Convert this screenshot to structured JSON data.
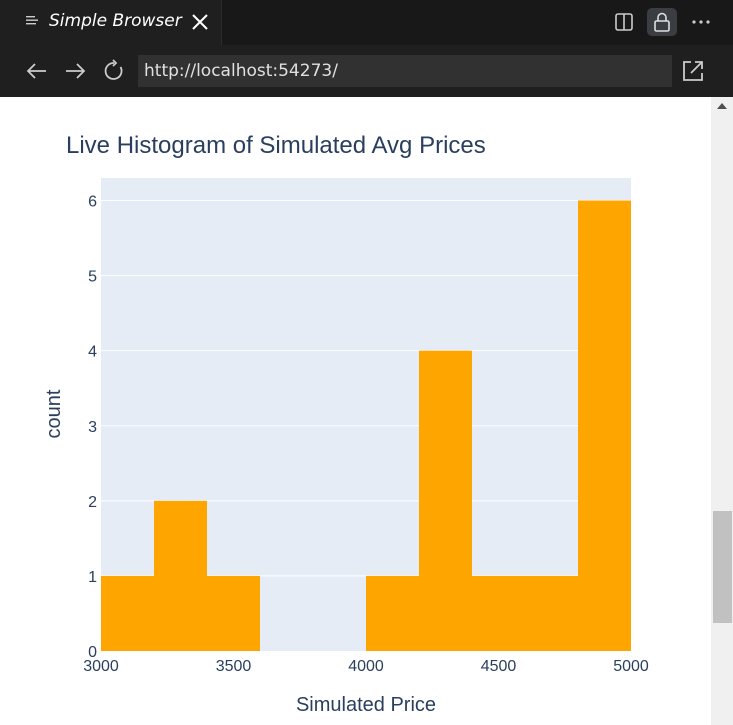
{
  "tab": {
    "title": "Simple Browser",
    "icon": "preview-lines-icon",
    "close_icon": "close-icon"
  },
  "toolbar": {
    "split_icon": "split-editor-icon",
    "lock_icon": "lock-icon",
    "more_icon": "ellipsis-icon"
  },
  "nav": {
    "url": "http://localhost:54273/",
    "back_icon": "arrow-left-icon",
    "forward_icon": "arrow-right-icon",
    "reload_icon": "refresh-icon",
    "open_external_icon": "open-external-icon"
  },
  "colors": {
    "bar": "#ffa500",
    "plot_bg": "#e5ecf6",
    "text": "#2a3f5f",
    "grid": "#ffffff"
  },
  "chart_data": {
    "type": "bar",
    "title": "Live Histogram of Simulated Avg Prices",
    "xlabel": "Simulated Price",
    "ylabel": "count",
    "xlim": [
      3000,
      5000
    ],
    "ylim": [
      0,
      6.3
    ],
    "bin_width": 200,
    "bins": [
      3000,
      3200,
      3400,
      3600,
      3800,
      4000,
      4200,
      4400,
      4600,
      4800
    ],
    "values": [
      1,
      2,
      1,
      0,
      0,
      1,
      4,
      1,
      1,
      6
    ],
    "x_ticks": [
      "3000",
      "3500",
      "4000",
      "4500",
      "5000"
    ],
    "x_tick_values": [
      3000,
      3500,
      4000,
      4500,
      5000
    ],
    "y_ticks": [
      "0",
      "1",
      "2",
      "3",
      "4",
      "5",
      "6"
    ],
    "y_tick_values": [
      0,
      1,
      2,
      3,
      4,
      5,
      6
    ],
    "grid": true
  }
}
